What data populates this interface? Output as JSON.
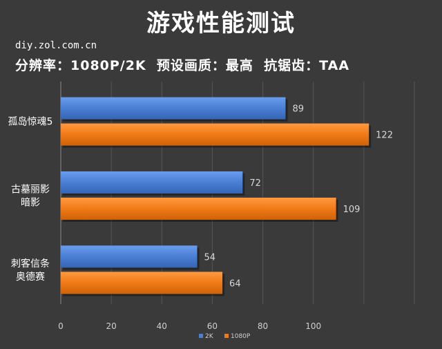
{
  "title": "游戏性能测试",
  "source": "diy.zol.com.cn",
  "settings": "分辨率：1080P/2K  预设画质：最高  抗锯齿：TAA",
  "chart_data": {
    "type": "bar",
    "orientation": "horizontal",
    "categories": [
      [
        "孤岛惊魂5"
      ],
      [
        "古墓丽影",
        "暗影"
      ],
      [
        "刺客信条",
        "奥德赛"
      ]
    ],
    "series": [
      {
        "name": "2K",
        "values": [
          89,
          72,
          54
        ],
        "color": "#4a7fd4"
      },
      {
        "name": "1080P",
        "values": [
          122,
          109,
          64
        ],
        "color": "#f07a16"
      }
    ],
    "xlim": [
      0,
      140
    ],
    "xticks": [
      0,
      20,
      40,
      60,
      80,
      100
    ],
    "grid": true,
    "legend": "bottom"
  }
}
